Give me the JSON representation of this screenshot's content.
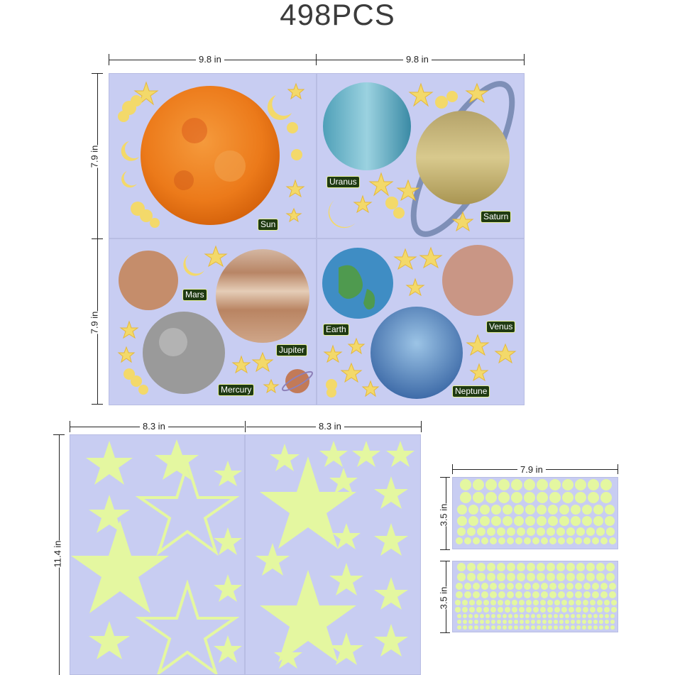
{
  "header": {
    "title": "498PCS"
  },
  "dimensions": {
    "top_left_width": "9.8 in",
    "top_right_width": "9.8 in",
    "top_height_1": "7.9 in",
    "top_height_2": "7.9 in",
    "bottom_left_width": "8.3 in",
    "bottom_mid_width": "8.3 in",
    "bottom_height": "11.4 in",
    "dots_width": "7.9 in",
    "dots_height_1": "3.5 in",
    "dots_height_2": "3.5 in"
  },
  "planets": {
    "sun": "Sun",
    "uranus": "Uranus",
    "saturn": "Saturn",
    "mars": "Mars",
    "jupiter": "Jupiter",
    "mercury": "Mercury",
    "earth": "Earth",
    "venus": "Venus",
    "neptune": "Neptune"
  },
  "colors": {
    "sheet_bg": "#c8cdf2",
    "glow_green": "#e4f7a0",
    "label_bg": "#1f3a12"
  }
}
